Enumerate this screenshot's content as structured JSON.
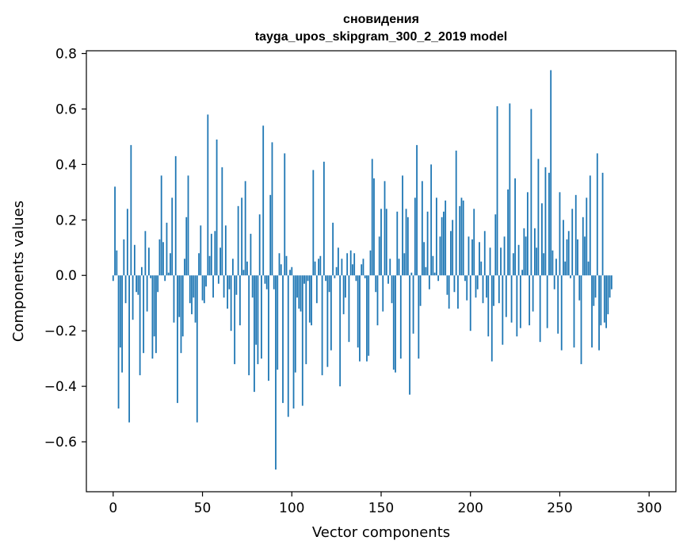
{
  "chart_data": {
    "type": "bar",
    "title": "сновидения",
    "subtitle": "tayga_upos_skipgram_300_2_2019 model",
    "xlabel": "Vector components",
    "ylabel": "Components values",
    "xlim": [
      -15,
      315
    ],
    "ylim": [
      -0.78,
      0.81
    ],
    "xticks": [
      0,
      50,
      100,
      150,
      200,
      250,
      300
    ],
    "yticks": [
      -0.6,
      -0.4,
      -0.2,
      0.0,
      0.2,
      0.4,
      0.6,
      0.8
    ],
    "ytick_labels": [
      "−0.6",
      "−0.4",
      "−0.2",
      "0.0",
      "0.2",
      "0.4",
      "0.6",
      "0.8"
    ],
    "bar_color": "#1f77b4",
    "grid": false,
    "x_start": 0,
    "values": [
      -0.02,
      0.32,
      0.09,
      -0.48,
      -0.26,
      -0.35,
      0.13,
      -0.1,
      0.24,
      -0.53,
      0.47,
      -0.16,
      0.11,
      -0.06,
      -0.07,
      -0.36,
      0.03,
      -0.28,
      0.16,
      -0.13,
      0.1,
      -0.01,
      -0.3,
      -0.22,
      -0.28,
      -0.06,
      0.13,
      0.36,
      0.12,
      -0.02,
      0.19,
      0.01,
      0.08,
      0.28,
      -0.17,
      0.43,
      -0.46,
      -0.15,
      -0.28,
      -0.22,
      0.06,
      0.21,
      0.36,
      -0.1,
      -0.14,
      -0.08,
      -0.17,
      -0.53,
      0.08,
      0.18,
      -0.09,
      -0.1,
      -0.04,
      0.58,
      0.07,
      0.15,
      -0.08,
      0.16,
      0.49,
      -0.03,
      0.1,
      0.39,
      -0.08,
      0.18,
      -0.12,
      -0.05,
      -0.2,
      0.06,
      -0.32,
      -0.07,
      0.25,
      -0.18,
      0.28,
      0.02,
      0.34,
      0.05,
      -0.36,
      0.15,
      -0.08,
      -0.42,
      -0.25,
      -0.32,
      0.22,
      -0.3,
      0.54,
      -0.03,
      -0.05,
      -0.38,
      0.29,
      0.48,
      -0.05,
      -0.7,
      -0.34,
      0.08,
      0.04,
      -0.46,
      0.44,
      0.07,
      -0.51,
      0.02,
      0.03,
      -0.48,
      -0.35,
      -0.08,
      -0.12,
      -0.13,
      -0.47,
      -0.03,
      -0.32,
      -0.02,
      -0.17,
      -0.18,
      0.38,
      0.05,
      -0.1,
      0.06,
      0.07,
      -0.36,
      0.41,
      -0.02,
      -0.33,
      -0.06,
      -0.27,
      0.19,
      -0.01,
      0.03,
      0.1,
      -0.4,
      0.06,
      -0.14,
      -0.08,
      0.08,
      -0.24,
      0.09,
      0.04,
      0.08,
      -0.02,
      -0.26,
      -0.31,
      0.04,
      0.06,
      -0.01,
      -0.31,
      -0.29,
      0.09,
      0.42,
      0.35,
      -0.06,
      -0.18,
      0.14,
      0.24,
      -0.13,
      0.34,
      0.24,
      -0.03,
      0.06,
      -0.1,
      -0.34,
      -0.35,
      0.23,
      0.06,
      -0.3,
      0.36,
      0.08,
      0.24,
      0.21,
      -0.43,
      0.01,
      -0.21,
      0.28,
      0.47,
      -0.3,
      -0.11,
      0.34,
      0.12,
      0.03,
      0.23,
      -0.05,
      0.4,
      0.07,
      0.01,
      0.28,
      -0.02,
      0.14,
      0.21,
      0.23,
      0.27,
      -0.07,
      -0.12,
      0.16,
      0.2,
      -0.06,
      0.45,
      -0.12,
      0.25,
      0.28,
      0.27,
      -0.02,
      -0.09,
      0.14,
      -0.2,
      0.13,
      0.24,
      -0.08,
      -0.05,
      0.12,
      0.05,
      -0.1,
      0.16,
      -0.08,
      -0.22,
      0.1,
      -0.31,
      -0.11,
      0.22,
      0.61,
      -0.1,
      0.1,
      -0.25,
      0.14,
      -0.15,
      0.31,
      0.62,
      -0.17,
      0.08,
      0.35,
      -0.22,
      0.11,
      -0.19,
      0.02,
      0.17,
      0.14,
      0.3,
      -0.18,
      0.6,
      -0.13,
      0.17,
      0.1,
      0.42,
      -0.24,
      0.26,
      0.08,
      0.39,
      -0.19,
      0.37,
      0.74,
      0.09,
      -0.05,
      0.06,
      -0.21,
      0.3,
      -0.27,
      0.2,
      0.05,
      0.13,
      0.16,
      -0.01,
      0.24,
      -0.26,
      0.29,
      0.13,
      -0.09,
      -0.32,
      0.21,
      0.14,
      0.28,
      0.05,
      0.36,
      -0.26,
      -0.11,
      -0.08,
      0.44,
      -0.27,
      -0.18,
      0.37,
      -0.17,
      -0.19,
      -0.14,
      -0.08,
      -0.05
    ]
  }
}
